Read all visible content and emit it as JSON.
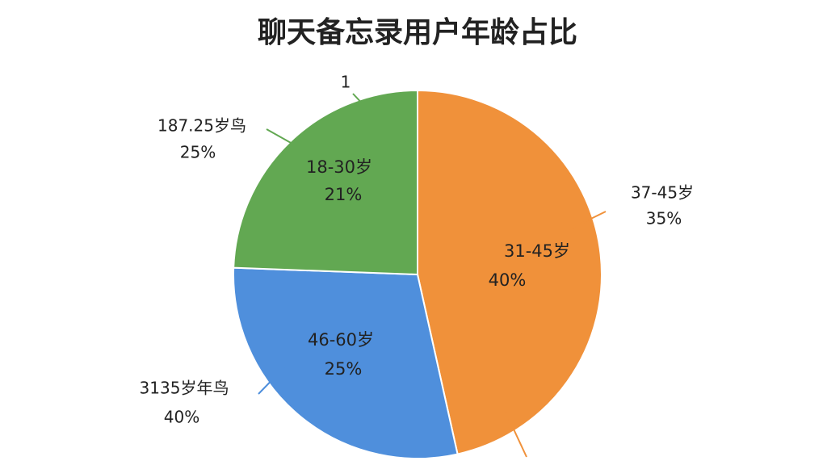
{
  "chart_data": {
    "type": "pie",
    "title": "聊天备忘录用户年龄占比",
    "categories": [
      "31-45岁",
      "46-60岁",
      "18-30岁"
    ],
    "values": [
      40,
      25,
      21
    ],
    "value_labels": [
      "40%",
      "25%",
      "21%"
    ],
    "colors": [
      "#f0913a",
      "#4f8fdc",
      "#62a852"
    ],
    "annotations": [
      {
        "text": "1"
      },
      {
        "text": "187.25岁鸟",
        "sub": "25%"
      },
      {
        "text": "37-45岁",
        "sub": "35%"
      },
      {
        "text": "3135岁年鸟",
        "sub": "40%"
      }
    ]
  }
}
